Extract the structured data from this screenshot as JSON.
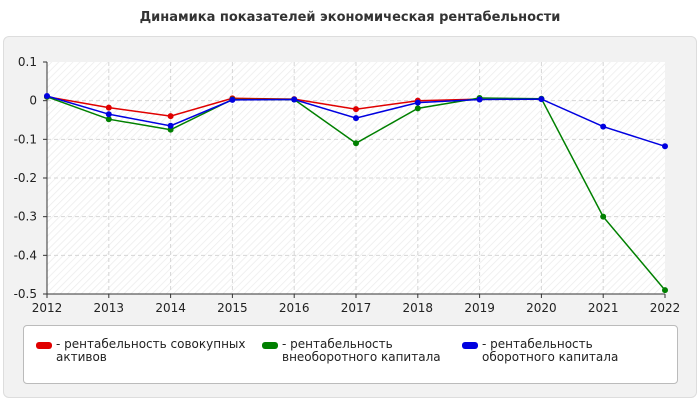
{
  "title": "Динамика показателей экономическая рентабельности",
  "chart_data": {
    "type": "line",
    "categories": [
      "2012",
      "2013",
      "2014",
      "2015",
      "2016",
      "2017",
      "2018",
      "2019",
      "2020",
      "2021",
      "2022"
    ],
    "ylim": [
      -0.5,
      0.1
    ],
    "yticks": [
      "0.1",
      "0",
      "-0.1",
      "-0.2",
      "-0.3",
      "-0.4",
      "-0.5"
    ],
    "grid": true,
    "legend_position": "bottom",
    "series": [
      {
        "name": "рентабельность совокупных активов",
        "color": "#e00000",
        "values": [
          0.01,
          -0.018,
          -0.04,
          0.006,
          0.004,
          -0.022,
          0.0,
          0.004,
          null,
          null,
          null
        ]
      },
      {
        "name": "рентабельность внеоборотного капитала",
        "color": "#008000",
        "values": [
          0.01,
          -0.048,
          -0.075,
          0.003,
          0.003,
          -0.11,
          -0.02,
          0.007,
          0.005,
          -0.3,
          -0.49
        ]
      },
      {
        "name": "рентабельность оборотного капитала",
        "color": "#0000e0",
        "values": [
          0.012,
          -0.035,
          -0.065,
          0.002,
          0.003,
          -0.045,
          -0.005,
          0.003,
          0.004,
          -0.067,
          -0.118
        ]
      }
    ]
  }
}
